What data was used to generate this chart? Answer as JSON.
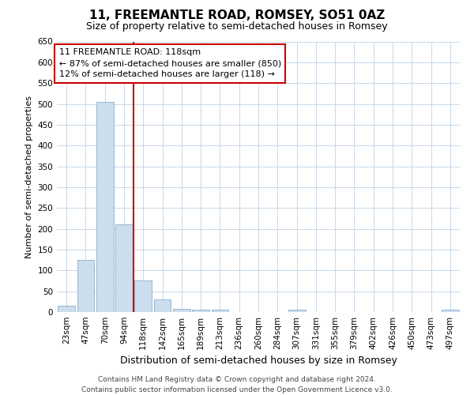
{
  "title": "11, FREEMANTLE ROAD, ROMSEY, SO51 0AZ",
  "subtitle": "Size of property relative to semi-detached houses in Romsey",
  "xlabel": "Distribution of semi-detached houses by size in Romsey",
  "ylabel": "Number of semi-detached properties",
  "categories": [
    "23sqm",
    "47sqm",
    "70sqm",
    "94sqm",
    "118sqm",
    "142sqm",
    "165sqm",
    "189sqm",
    "213sqm",
    "236sqm",
    "260sqm",
    "284sqm",
    "307sqm",
    "331sqm",
    "355sqm",
    "379sqm",
    "402sqm",
    "426sqm",
    "450sqm",
    "473sqm",
    "497sqm"
  ],
  "values": [
    15,
    125,
    505,
    210,
    75,
    30,
    8,
    6,
    5,
    0,
    0,
    0,
    5,
    0,
    0,
    0,
    0,
    0,
    0,
    0,
    5
  ],
  "bar_color": "#ccdded",
  "bar_edgecolor": "#88aece",
  "highlight_index": 4,
  "highlight_color": "#cc0000",
  "annotation_line1": "11 FREEMANTLE ROAD: 118sqm",
  "annotation_line2": "← 87% of semi-detached houses are smaller (850)",
  "annotation_line3": "12% of semi-detached houses are larger (118) →",
  "annotation_box_color": "#ffffff",
  "annotation_box_edgecolor": "#cc0000",
  "ylim": [
    0,
    650
  ],
  "yticks": [
    0,
    50,
    100,
    150,
    200,
    250,
    300,
    350,
    400,
    450,
    500,
    550,
    600,
    650
  ],
  "background_color": "#ffffff",
  "grid_color": "#c8d8e8",
  "footer_line1": "Contains HM Land Registry data © Crown copyright and database right 2024.",
  "footer_line2": "Contains public sector information licensed under the Open Government Licence v3.0.",
  "title_fontsize": 11,
  "subtitle_fontsize": 9,
  "xlabel_fontsize": 9,
  "ylabel_fontsize": 8,
  "tick_fontsize": 7.5,
  "annotation_fontsize": 8,
  "footer_fontsize": 6.5
}
